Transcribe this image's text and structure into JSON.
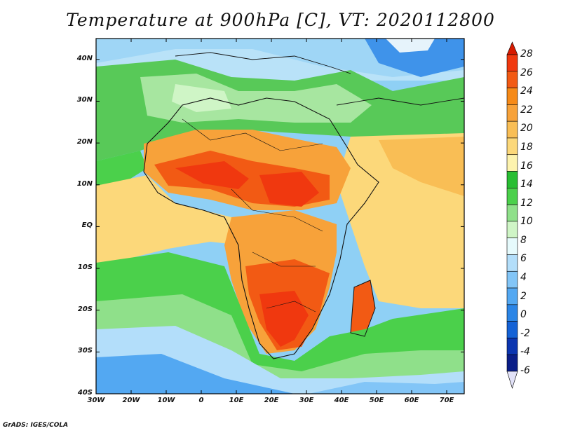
{
  "title": "Temperature at 900hPa [C], VT: 2020112800",
  "credit": "GrADS: IGES/COLA",
  "map": {
    "lat_labels": [
      "40N",
      "30N",
      "20N",
      "10N",
      "EQ",
      "10S",
      "20S",
      "30S",
      "40S"
    ],
    "lon_labels": [
      "30W",
      "20W",
      "10W",
      "0",
      "10E",
      "20E",
      "30E",
      "40E",
      "50E",
      "60E",
      "70E"
    ],
    "extent": {
      "lon_min": -30,
      "lon_max": 75,
      "lat_min": -40,
      "lat_max": 45
    }
  },
  "colorbar": {
    "levels": [
      "28",
      "26",
      "24",
      "22",
      "20",
      "18",
      "16",
      "14",
      "12",
      "10",
      "8",
      "6",
      "4",
      "2",
      "0",
      "-2",
      "-4",
      "-6"
    ],
    "colors": [
      "#d71a00",
      "#f0380f",
      "#f25a14",
      "#f68a18",
      "#f7a23a",
      "#f9be55",
      "#fcd87a",
      "#fdf3ae",
      "#28be32",
      "#4bd04b",
      "#8fe08a",
      "#cff5c6",
      "#e6fafc",
      "#b3defa",
      "#82c5f7",
      "#53a8f2",
      "#2b85e6",
      "#1462d6",
      "#0b35b0",
      "#0a1e88",
      "#e2e2f8"
    ]
  }
}
